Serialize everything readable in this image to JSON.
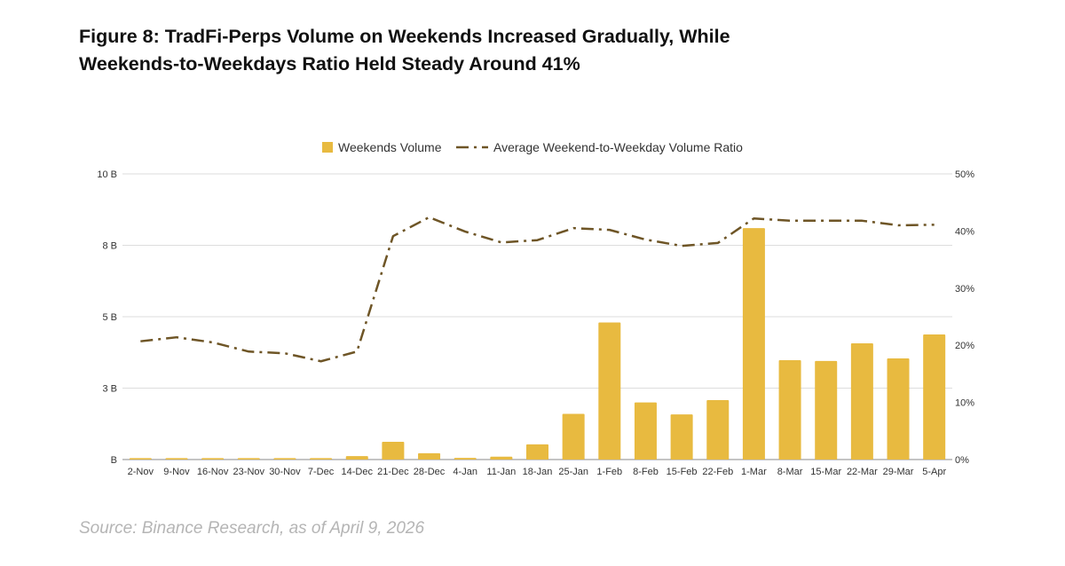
{
  "title_line1": "Figure 8: TradFi-Perps Volume on Weekends Increased Gradually, While",
  "title_line2": "Weekends-to-Weekdays Ratio Held Steady Around 41%",
  "source": "Source: Binance Research, as of April 9, 2026",
  "chart_data": {
    "type": "bar+line",
    "categories": [
      "2-Nov",
      "9-Nov",
      "16-Nov",
      "23-Nov",
      "30-Nov",
      "7-Dec",
      "14-Dec",
      "21-Dec",
      "28-Dec",
      "4-Jan",
      "11-Jan",
      "18-Jan",
      "25-Jan",
      "1-Feb",
      "8-Feb",
      "15-Feb",
      "22-Feb",
      "1-Mar",
      "8-Mar",
      "15-Mar",
      "22-Mar",
      "29-Mar",
      "5-Apr"
    ],
    "series": [
      {
        "name": "Weekends Volume",
        "type": "bar",
        "axis": "left",
        "color": "#E8BA40",
        "values": [
          0.05,
          0.05,
          0.05,
          0.05,
          0.05,
          0.05,
          0.12,
          0.62,
          0.22,
          0.06,
          0.1,
          0.53,
          1.6,
          4.8,
          2.0,
          1.58,
          2.08,
          8.1,
          3.48,
          3.45,
          4.07,
          3.54,
          4.38
        ]
      },
      {
        "name": "Average Weekend-to-Weekday Volume Ratio",
        "type": "line",
        "axis": "right",
        "color": "#6E5526",
        "style": "dash-dot",
        "values": [
          20.7,
          21.4,
          20.5,
          18.9,
          18.6,
          17.2,
          18.9,
          39.1,
          42.4,
          39.9,
          38.0,
          38.4,
          40.5,
          40.2,
          38.5,
          37.4,
          37.9,
          42.2,
          41.8,
          41.8,
          41.8,
          41.0,
          41.1
        ]
      }
    ],
    "left_axis": {
      "ylim": [
        0,
        10
      ],
      "unit": "B",
      "tick_values": [
        0,
        2.5,
        5,
        7.5,
        10
      ],
      "tick_labels": [
        "B",
        "3 B",
        "5 B",
        "8 B",
        "10 B"
      ]
    },
    "right_axis": {
      "ylim": [
        0,
        50
      ],
      "unit": "%",
      "tick_labels": [
        "0%",
        "10%",
        "20%",
        "30%",
        "40%",
        "50%"
      ]
    },
    "grid": true,
    "legend": "top-center"
  }
}
